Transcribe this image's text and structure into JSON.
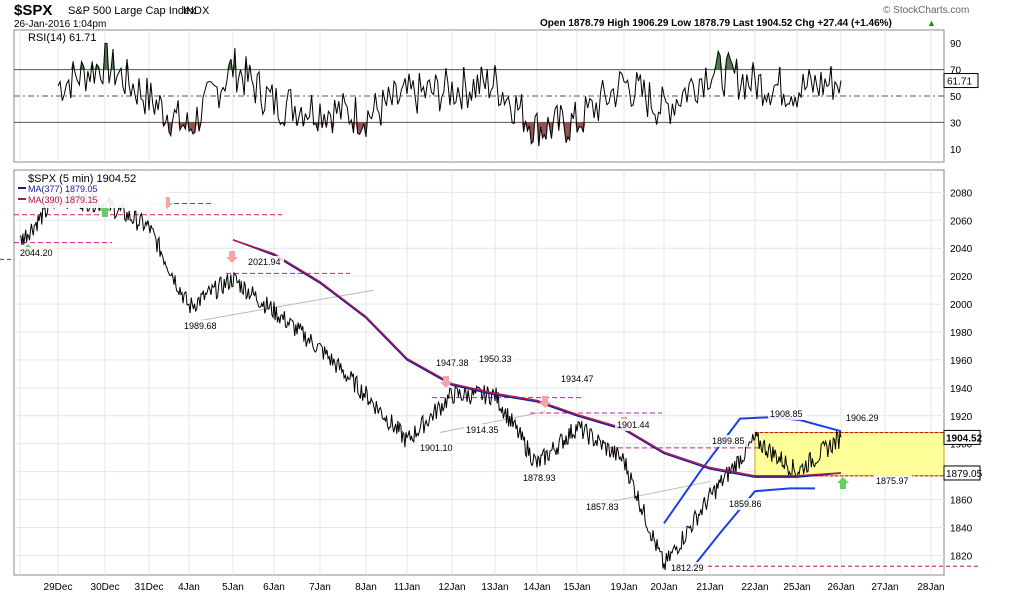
{
  "header": {
    "symbol": "$SPX",
    "name": "S&P 500 Large Cap Index",
    "exchange": "INDX",
    "datetime": "26-Jan-2016 1:04pm",
    "watermark": "© StockCharts.com",
    "ohlc": "Open 1878.79  High 1906.29  Low 1878.79  Last 1904.52  Chg +27.44 (+1.46%)",
    "ohlc_arrow": "▲"
  },
  "colors": {
    "price": "#000000",
    "ma377": "#1a1a9c",
    "ma390": "#b01848",
    "band": "#1f3fe0",
    "support": "#d41d8c",
    "lowline": "#c8102e",
    "range_fill": "#ffff99",
    "range_border": "#c8a000",
    "buy_arrow": "#66cc66",
    "sell_arrow": "#f4a6a6",
    "rsi_overbought_fill": "#3c6e3c",
    "rsi_oversold_fill": "#8a4040",
    "grid": "#e6e6e6"
  },
  "chart_data": [
    {
      "type": "line",
      "title": "RSI(14) 61.71",
      "legend": "RSI(14) 61.71",
      "last_value_label": "61.71",
      "ylim": [
        0,
        100
      ],
      "yticks": [
        10,
        30,
        50,
        70,
        90
      ],
      "reference_lines": [
        30,
        50,
        70
      ],
      "grid": true,
      "series": [
        {
          "name": "RSI(14)",
          "x": [
            "29Dec",
            "30Dec",
            "31Dec",
            "4Jan",
            "5Jan",
            "6Jan",
            "7Jan",
            "8Jan",
            "11Jan",
            "12Jan",
            "13Jan",
            "14Jan",
            "15Jan",
            "19Jan",
            "20Jan",
            "21Jan",
            "22Jan",
            "25Jan",
            "26Jan"
          ],
          "values": [
            58,
            75,
            48,
            25,
            72,
            45,
            40,
            35,
            50,
            55,
            60,
            25,
            30,
            60,
            40,
            70,
            60,
            55,
            61.71
          ]
        }
      ]
    },
    {
      "type": "line",
      "title": "$SPX (5 min) 1904.52",
      "legend": [
        {
          "name": "$SPX (5 min) 1904.52"
        },
        {
          "name": "MA(377) 1879.05"
        },
        {
          "name": "MA(390) 1879.15"
        }
      ],
      "ylim": [
        1806,
        2096
      ],
      "yticks": [
        1820,
        1840,
        1860,
        1880,
        1900,
        1920,
        1940,
        1960,
        1980,
        2000,
        2020,
        2040,
        2060,
        2080
      ],
      "x_tick_labels": [
        "29Dec",
        "30Dec",
        "31Dec",
        "4Jan",
        "5Jan",
        "6Jan",
        "7Jan",
        "8Jan",
        "11Jan",
        "12Jan",
        "13Jan",
        "14Jan",
        "15Jan",
        "19Jan",
        "20Jan",
        "21Jan",
        "22Jan",
        "25Jan",
        "26Jan",
        "27Jan",
        "28Jan"
      ],
      "grid": true,
      "series": [
        {
          "name": "$SPX (5 min)",
          "x": [
            "28Dec",
            "29Dec",
            "30Dec",
            "31Dec",
            "4Jan",
            "5Jan",
            "6Jan",
            "7Jan",
            "8Jan",
            "11Jan",
            "12Jan",
            "13Jan",
            "14Jan",
            "15Jan",
            "19Jan",
            "20Jan",
            "21Jan",
            "22Jan",
            "25Jan",
            "26Jan"
          ],
          "values": [
            2045,
            2076,
            2072,
            2055,
            1998,
            2018,
            1995,
            1968,
            1935,
            1902,
            1935,
            1935,
            1885,
            1912,
            1888,
            1812.29,
            1862,
            1903,
            1880,
            1904.52
          ]
        },
        {
          "name": "MA(377)",
          "x": [
            "5Jan",
            "6Jan",
            "7Jan",
            "8Jan",
            "11Jan",
            "12Jan",
            "13Jan",
            "14Jan",
            "15Jan",
            "19Jan",
            "20Jan",
            "21Jan",
            "22Jan",
            "25Jan",
            "26Jan"
          ],
          "values": [
            2046,
            2035,
            2015,
            1990,
            1960,
            1942,
            1935,
            1930,
            1920,
            1910,
            1893,
            1882,
            1876,
            1876,
            1879.05
          ]
        },
        {
          "name": "MA(390)",
          "x": [
            "5Jan",
            "6Jan",
            "7Jan",
            "8Jan",
            "11Jan",
            "12Jan",
            "13Jan",
            "14Jan",
            "15Jan",
            "19Jan",
            "20Jan",
            "21Jan",
            "22Jan",
            "25Jan",
            "26Jan"
          ],
          "values": [
            2046,
            2036,
            2016,
            1991,
            1961,
            1943,
            1936,
            1931,
            1921,
            1911,
            1894,
            1883,
            1877,
            1877,
            1879.15
          ]
        }
      ],
      "annotations": [
        {
          "label": "2044.20",
          "x": "28Dec",
          "y": 2044.2
        },
        {
          "label": "1989.68",
          "x": "4Jan",
          "y": 1989.68
        },
        {
          "label": "2021.94",
          "x": "5Jan",
          "y": 2021.94
        },
        {
          "label": "1947.38",
          "x": "12Jan",
          "y": 1947.38
        },
        {
          "label": "1950.33",
          "x": "13Jan",
          "y": 1950.33
        },
        {
          "label": "1934.47",
          "x": "15Jan",
          "y": 1934.47
        },
        {
          "label": "1914.35",
          "x": "12Jan",
          "y": 1914.35
        },
        {
          "label": "1901.10",
          "x": "11Jan",
          "y": 1901.1
        },
        {
          "label": "1901.44",
          "x": "19Jan",
          "y": 1901.44
        },
        {
          "label": "1878.93",
          "x": "14Jan",
          "y": 1878.93
        },
        {
          "label": "1857.83",
          "x": "19Jan",
          "y": 1857.83
        },
        {
          "label": "1899.85",
          "x": "21Jan",
          "y": 1899.85
        },
        {
          "label": "1859.86",
          "x": "21Jan",
          "y": 1859.86
        },
        {
          "label": "1812.29",
          "x": "20Jan",
          "y": 1812.29
        },
        {
          "label": "1908.85",
          "x": "25Jan",
          "y": 1908.85
        },
        {
          "label": "1906.29",
          "x": "26Jan",
          "y": 1906.29
        },
        {
          "label": "1875.97",
          "x": "26Jan",
          "y": 1875.97
        }
      ],
      "value_tags": [
        {
          "label": "1904.52",
          "y": 1904.52
        },
        {
          "label": "1879.05",
          "y": 1879.05
        }
      ]
    }
  ]
}
